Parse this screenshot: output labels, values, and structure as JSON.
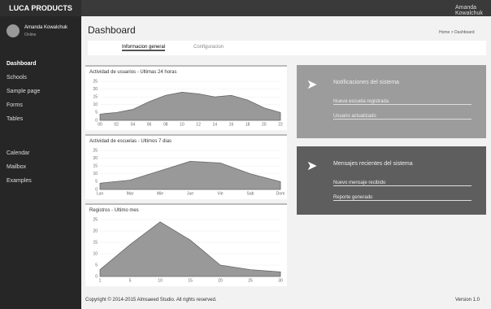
{
  "topbar": {
    "brand": "LUCA PRODUCTS",
    "user": "Amanda Kowalchuk"
  },
  "sidebar": {
    "user_name": "Amanda Kowalchuk",
    "status": "Online",
    "menu": [
      "Dashboard",
      "Schools",
      "Sample page",
      "Forms",
      "Tables",
      "Calendar",
      "Mailbox",
      "Examples"
    ]
  },
  "header": {
    "title": "Dashboard",
    "breadcrumb": [
      "Home",
      "Dashboard"
    ]
  },
  "tabs": [
    "Informacion general",
    "Configuracion"
  ],
  "charts": [
    {
      "title": "Actividad de usuarios - Ultimas 24 horas",
      "x": [
        "00",
        "02",
        "04",
        "06",
        "08",
        "10",
        "12",
        "14",
        "16",
        "18",
        "20",
        "22"
      ],
      "values": [
        4,
        5,
        7,
        12,
        16,
        18,
        17,
        15,
        16,
        13,
        8,
        5
      ],
      "ylim": [
        0,
        25
      ],
      "yticks": [
        0,
        5,
        10,
        15,
        20,
        25
      ]
    },
    {
      "title": "Actividad de escuelas - Ultimos 7 dias",
      "x": [
        "Lun",
        "Mar",
        "Mie",
        "Jue",
        "Vie",
        "Sab",
        "Dom"
      ],
      "values": [
        4,
        6,
        12,
        18,
        17,
        10,
        5
      ],
      "ylim": [
        0,
        25
      ],
      "yticks": [
        0,
        5,
        10,
        15,
        20,
        25
      ]
    },
    {
      "title": "Registros - Ultimo mes",
      "x": [
        "1",
        "5",
        "10",
        "15",
        "20",
        "25",
        "30"
      ],
      "values": [
        3,
        14,
        24,
        16,
        5,
        3,
        2
      ],
      "ylim": [
        0,
        25
      ],
      "yticks": [
        0,
        5,
        10,
        15,
        20,
        25
      ]
    }
  ],
  "panels": [
    {
      "title": "Notificaciones del sistema",
      "lines": [
        "Nueva escuela registrada",
        "Usuario actualizado"
      ]
    },
    {
      "title": "Mensajes recientes del sistema",
      "lines": [
        "Nuevo mensaje recibido",
        "Reporte generado"
      ]
    }
  ],
  "footer": {
    "copyright": "Copyright © 2014-2015 Almsaeed Studio. All rights reserved.",
    "version": "Version 1.0"
  }
}
